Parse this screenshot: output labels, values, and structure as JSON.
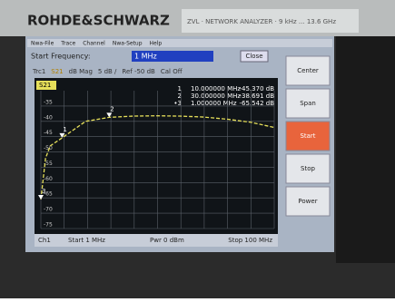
{
  "device": {
    "brand": "ROHDE&SCHWARZ",
    "model": "ZVL · NETWORK ANALYZER · 9 kHz ... 13.6 GHz"
  },
  "menu": [
    "Nwa-File",
    "Trace",
    "Channel",
    "Nwa-Setup",
    "Help"
  ],
  "entry": {
    "label": "Start Frequency:",
    "value": "1 MHz",
    "button": "Close"
  },
  "trace_info": [
    "Trc1",
    "S21",
    "dB Mag",
    "5 dB /",
    "Ref -50 dB",
    "Cal Off"
  ],
  "marker_table": [
    {
      "id": "1",
      "freq": "10.000000 MHz",
      "level": "-45.370 dB"
    },
    {
      "id": "2",
      "freq": "30.000000 MHz",
      "level": "-38.691 dB"
    },
    {
      "id": "•3",
      "freq": "1.000000 MHz",
      "level": "-65.542 dB"
    }
  ],
  "softkeys": [
    "Center",
    "Span",
    "Start",
    "Stop",
    "Power"
  ],
  "chart_data": {
    "type": "line",
    "title": "S21",
    "x": [
      1,
      3,
      5,
      10,
      20,
      30,
      40,
      50,
      60,
      70,
      80,
      90,
      100
    ],
    "series": [
      {
        "color": "#e6df5a",
        "values": [
          -65.5,
          -52,
          -48,
          -45.4,
          -40,
          -38.7,
          -38.3,
          -38.2,
          -38.3,
          -38.6,
          -39.3,
          -40.3,
          -42
        ]
      }
    ],
    "markers": [
      {
        "label": "1",
        "x": 10,
        "y": -45.37
      },
      {
        "label": "2",
        "x": 30,
        "y": -38.691
      },
      {
        "label": "3",
        "x": 1,
        "y": -65.542
      }
    ],
    "xlim": [
      1,
      100
    ],
    "ylim": [
      -75,
      -30
    ],
    "yticks": [
      -35,
      -40,
      -45,
      -50,
      -55,
      -60,
      -65,
      -70,
      -75
    ],
    "grid": true
  },
  "footer": {
    "channel": "Ch1",
    "start": "Start 1 MHz",
    "power": "Pwr 0 dBm",
    "stop": "Stop 100 MHz"
  }
}
